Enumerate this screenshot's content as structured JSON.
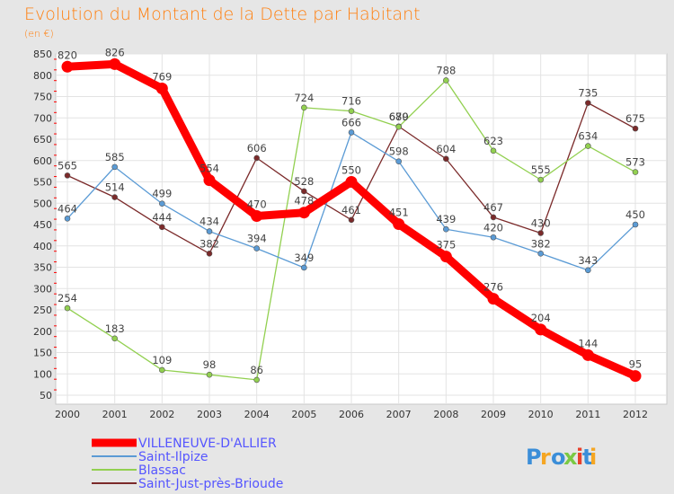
{
  "chart_data": {
    "type": "line",
    "title": "Evolution du Montant de la Dette par Habitant",
    "ylabel": "(en €)",
    "xlabel": "",
    "categories": [
      "2000",
      "2001",
      "2002",
      "2003",
      "2004",
      "2005",
      "2006",
      "2007",
      "2008",
      "2009",
      "2010",
      "2011",
      "2012"
    ],
    "ylim": [
      50,
      850
    ],
    "yticks": [
      50,
      100,
      150,
      200,
      250,
      300,
      350,
      400,
      450,
      500,
      550,
      600,
      650,
      700,
      750,
      800,
      850
    ],
    "grid": true,
    "legend_position": "bottom-left",
    "series": [
      {
        "name": "VILLENEUVE-D'ALLIER",
        "color": "#ff0000",
        "values": [
          820,
          826,
          769,
          554,
          470,
          478,
          550,
          451,
          375,
          276,
          204,
          144,
          95
        ]
      },
      {
        "name": "Saint-Ilpize",
        "color": "#5b9bd5",
        "values": [
          464,
          585,
          499,
          434,
          394,
          349,
          666,
          598,
          439,
          420,
          382,
          343,
          450
        ]
      },
      {
        "name": "Blassac",
        "color": "#92d050",
        "values": [
          254,
          183,
          109,
          98,
          86,
          724,
          716,
          679,
          788,
          623,
          555,
          634,
          573
        ]
      },
      {
        "name": "Saint-Just-près-Brioude",
        "color": "#7b2a2a",
        "values": [
          565,
          514,
          444,
          382,
          606,
          528,
          461,
          680,
          604,
          467,
          430,
          735,
          675
        ]
      }
    ]
  },
  "logo": {
    "text": "Proxiti",
    "colors": [
      "#3b8ed8",
      "#f5a623",
      "#3b8ed8",
      "#7ac943",
      "#e8412c",
      "#3b8ed8",
      "#f5a623"
    ]
  }
}
